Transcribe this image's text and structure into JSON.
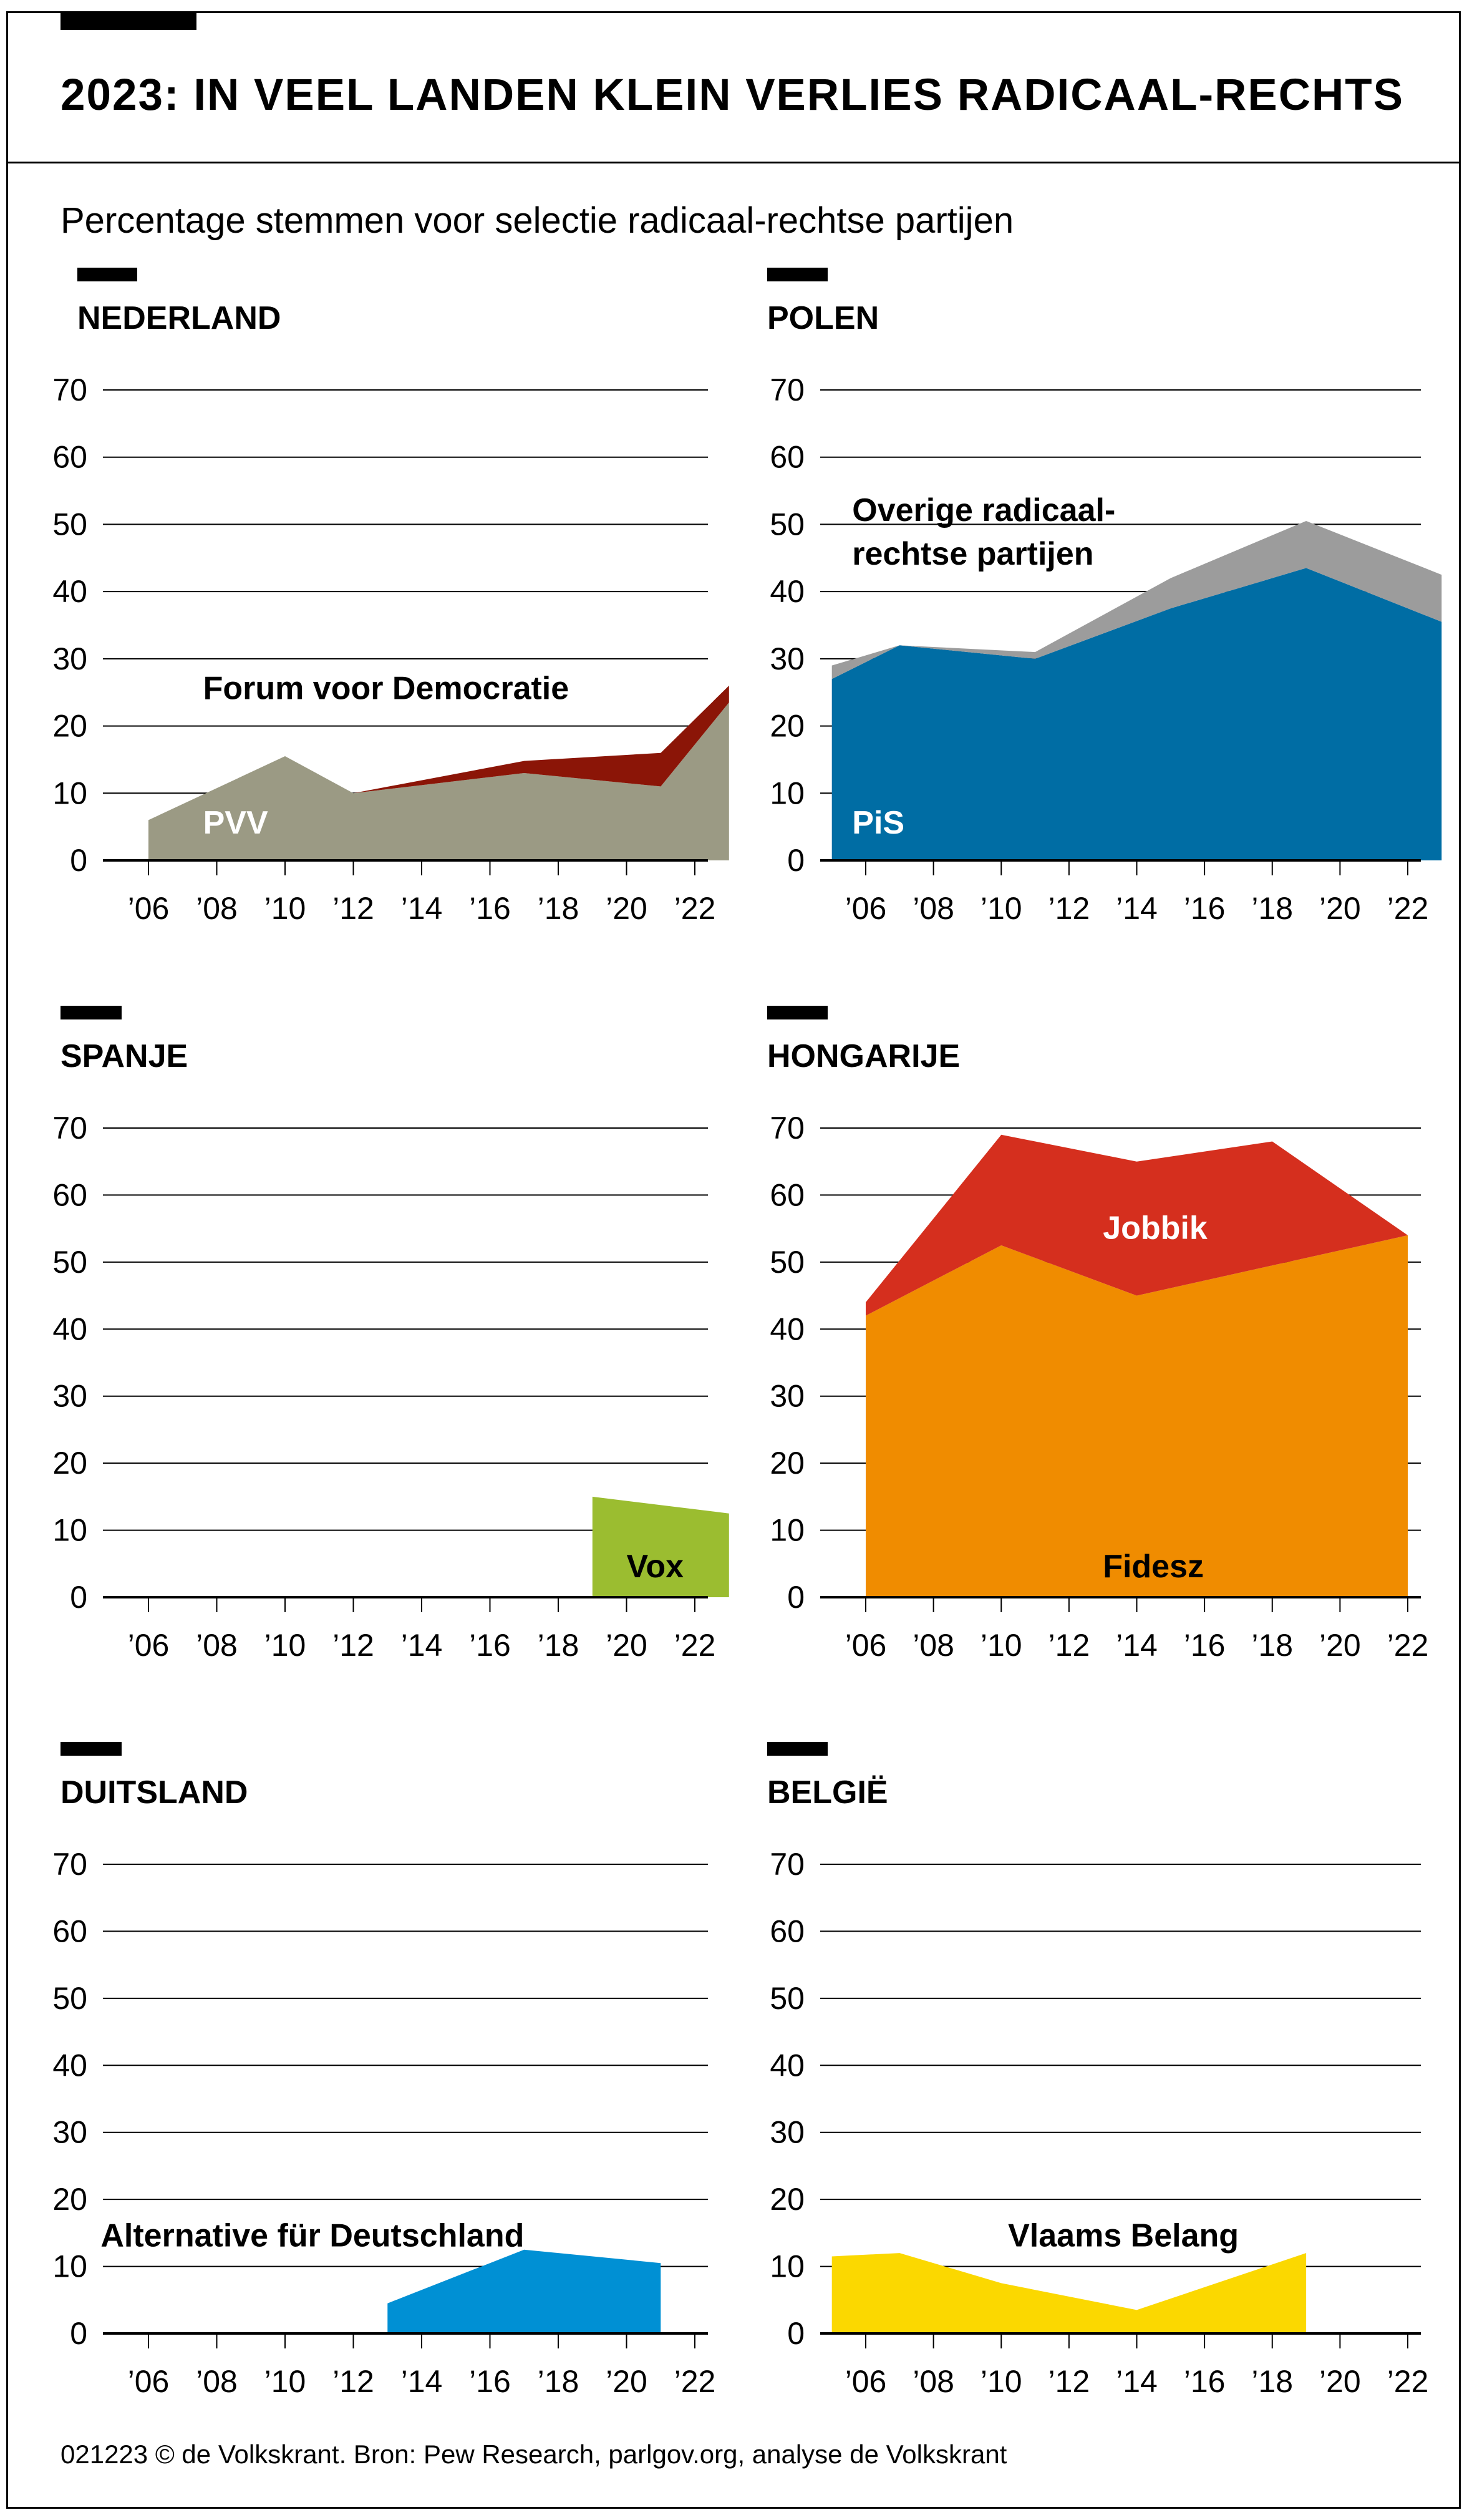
{
  "header": {
    "title": "2023: IN VEEL LANDEN KLEIN VERLIES RADICAAL-RECHTS",
    "subtitle": "Percentage stemmen voor selectie radicaal-rechtse partijen"
  },
  "footer": {
    "source": "021223 © de Volkskrant. Bron: Pew Research, parlgov.org, analyse de Volkskrant"
  },
  "chart_data": [
    {
      "type": "area",
      "country": "NEDERLAND",
      "ylim": [
        0,
        70
      ],
      "yticks": [
        "70",
        "60",
        "50",
        "40",
        "30",
        "20",
        "10",
        "0"
      ],
      "xticks": [
        "’06",
        "’08",
        "’10",
        "’12",
        "’14",
        "’16",
        "’18",
        "’20",
        "’22"
      ],
      "series": [
        {
          "name": "PVV",
          "color": "#9b9a84",
          "x": [
            2006,
            2010,
            2012,
            2017,
            2021,
            2023
          ],
          "y": [
            6,
            15.5,
            10,
            13,
            11,
            23.5
          ]
        },
        {
          "name": "Forum voor Democratie",
          "color": "#8b1507",
          "x": [
            2006,
            2010,
            2012,
            2017,
            2021,
            2023
          ],
          "y": [
            0,
            0,
            0,
            1.8,
            5,
            2.5
          ]
        }
      ],
      "labels": [
        {
          "text": "PVV",
          "color": "#ffffff",
          "x": 2007.6,
          "y": 4
        },
        {
          "text": "Forum voor Democratie",
          "color": "#000000",
          "x": 2007.6,
          "y": 24
        }
      ]
    },
    {
      "type": "area",
      "country": "POLEN",
      "ylim": [
        0,
        70
      ],
      "yticks": [
        "70",
        "60",
        "50",
        "40",
        "30",
        "20",
        "10",
        "0"
      ],
      "xticks": [
        "’06",
        "’08",
        "’10",
        "’12",
        "’14",
        "’16",
        "’18",
        "’20",
        "’22"
      ],
      "series": [
        {
          "name": "PiS",
          "color": "#006da4",
          "x": [
            2005,
            2007,
            2011,
            2015,
            2019,
            2023
          ],
          "y": [
            27,
            32,
            30,
            37.5,
            43.5,
            35.5
          ]
        },
        {
          "name": "Overige radicaal-rechtse partijen",
          "color": "#9c9c9c",
          "x": [
            2005,
            2007,
            2011,
            2015,
            2019,
            2023
          ],
          "y": [
            2,
            0,
            1,
            4.5,
            7,
            7
          ]
        }
      ],
      "labels": [
        {
          "text": "PiS",
          "color": "#ffffff",
          "x": 2005.6,
          "y": 4
        },
        {
          "text": "Overige radicaal-",
          "color": "#000000",
          "x": 2005.6,
          "y": 50.5
        },
        {
          "text": "rechtse partijen",
          "color": "#000000",
          "x": 2005.6,
          "y": 44
        }
      ]
    },
    {
      "type": "area",
      "country": "SPANJE",
      "ylim": [
        0,
        70
      ],
      "yticks": [
        "70",
        "60",
        "50",
        "40",
        "30",
        "20",
        "10",
        "0"
      ],
      "xticks": [
        "’06",
        "’08",
        "’10",
        "’12",
        "’14",
        "’16",
        "’18",
        "’20",
        "’22"
      ],
      "series": [
        {
          "name": "Vox",
          "color": "#9bbd30",
          "x": [
            2019,
            2023
          ],
          "y": [
            15,
            12.5
          ]
        }
      ],
      "labels": [
        {
          "text": "Vox",
          "color": "#000000",
          "x": 2020.0,
          "y": 3
        }
      ]
    },
    {
      "type": "area",
      "country": "HONGARIJE",
      "ylim": [
        0,
        70
      ],
      "yticks": [
        "70",
        "60",
        "50",
        "40",
        "30",
        "20",
        "10",
        "0"
      ],
      "xticks": [
        "’06",
        "’08",
        "’10",
        "’12",
        "’14",
        "’16",
        "’18",
        "’20",
        "’22"
      ],
      "series": [
        {
          "name": "Fidesz",
          "color": "#f08c00",
          "x": [
            2006,
            2010,
            2014,
            2018,
            2022
          ],
          "y": [
            42,
            52.5,
            45,
            49.5,
            54
          ]
        },
        {
          "name": "Jobbik",
          "color": "#d52f1e",
          "x": [
            2006,
            2010,
            2014,
            2018,
            2022
          ],
          "y": [
            2,
            16.5,
            20,
            18.5,
            0
          ]
        }
      ],
      "labels": [
        {
          "text": "Jobbik",
          "color": "#ffffff",
          "x": 2013.0,
          "y": 53.5
        },
        {
          "text": "Fidesz",
          "color": "#000000",
          "x": 2013.0,
          "y": 3
        }
      ]
    },
    {
      "type": "area",
      "country": "DUITSLAND",
      "ylim": [
        0,
        70
      ],
      "yticks": [
        "70",
        "60",
        "50",
        "40",
        "30",
        "20",
        "10",
        "0"
      ],
      "xticks": [
        "’06",
        "’08",
        "’10",
        "’12",
        "’14",
        "’16",
        "’18",
        "’20",
        "’22"
      ],
      "series": [
        {
          "name": "Alternative für Deutschland",
          "color": "#0090d4",
          "x": [
            2013,
            2017,
            2021
          ],
          "y": [
            4.5,
            12.5,
            10.5
          ]
        }
      ],
      "labels": [
        {
          "text": "Alternative für Deutschland",
          "color": "#000000",
          "x": 2004.6,
          "y": 13
        }
      ]
    },
    {
      "type": "area",
      "country": "BELGIË",
      "ylim": [
        0,
        70
      ],
      "yticks": [
        "70",
        "60",
        "50",
        "40",
        "30",
        "20",
        "10",
        "0"
      ],
      "xticks": [
        "’06",
        "’08",
        "’10",
        "’12",
        "’14",
        "’16",
        "’18",
        "’20",
        "’22"
      ],
      "series": [
        {
          "name": "Vlaams Belang",
          "color": "#fbd800",
          "x": [
            2005,
            2007,
            2010,
            2014,
            2019
          ],
          "y": [
            11.5,
            12,
            7.5,
            3.5,
            12
          ]
        }
      ],
      "labels": [
        {
          "text": "Vlaams Belang",
          "color": "#000000",
          "x": 2010.2,
          "y": 13
        }
      ]
    }
  ]
}
